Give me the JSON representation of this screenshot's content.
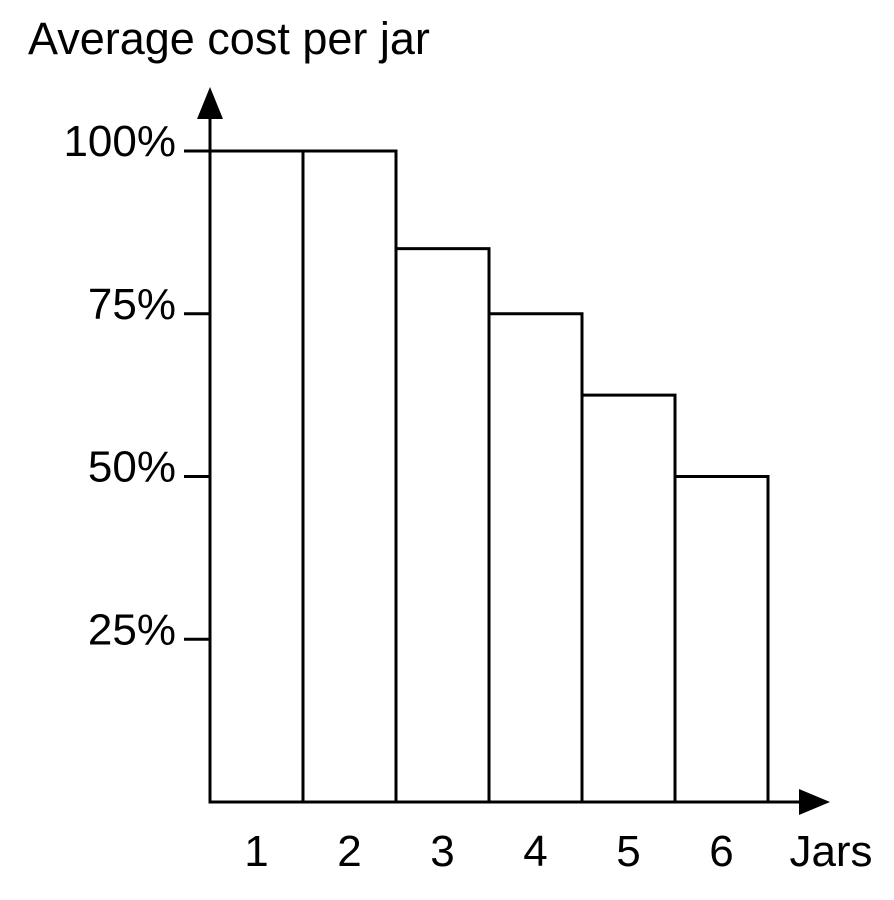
{
  "page": {
    "background_color": "#ffffff",
    "text_color": "#000000"
  },
  "chart": {
    "title": "Average cost per jar",
    "x_axis_label": "Jars"
  },
  "chart_data": {
    "type": "bar",
    "title": "Average cost per jar",
    "xlabel": "Jars",
    "ylabel": "",
    "categories": [
      "1",
      "2",
      "3",
      "4",
      "5",
      "6"
    ],
    "values": [
      100,
      100,
      85,
      75,
      62.5,
      50
    ],
    "unit": "%",
    "ytick_labels": [
      "100%",
      "75%",
      "50%",
      "25%"
    ],
    "ytick_values": [
      100,
      75,
      50,
      25
    ],
    "ylim": [
      0,
      100
    ],
    "grid": false,
    "legend": false,
    "bar_fill": "#ffffff",
    "stroke_color": "#000000",
    "style": "outlined white bars adjacent to each other, open axes with black arrowheads, first bar starts at the y-axis"
  }
}
